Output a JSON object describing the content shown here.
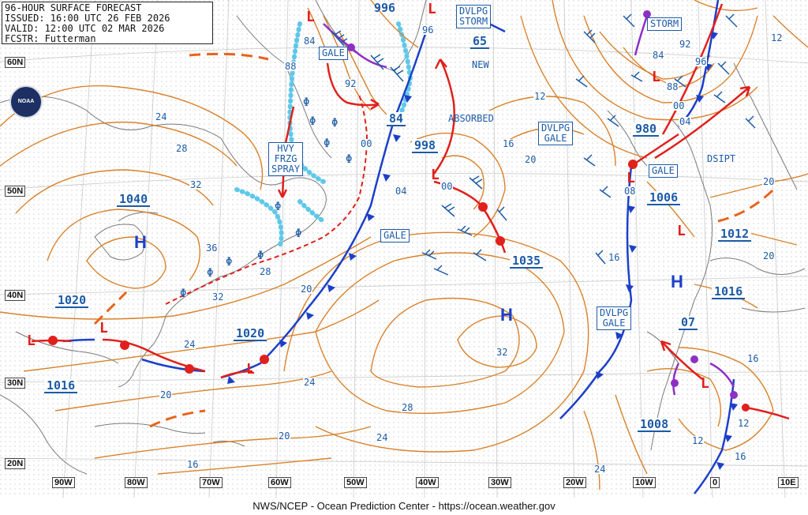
{
  "header": {
    "title": "96-HOUR SURFACE FORECAST",
    "issued": "ISSUED: 16:00 UTC 26 FEB 2026",
    "valid": "VALID:  12:00 UTC 02 MAR 2026",
    "forecaster": "FCSTR:  Futterman"
  },
  "footer": "NWS/NCEP - Ocean Prediction Center - https://ocean.weather.gov",
  "logo_text": "NOAA",
  "latitudes": [
    "60N",
    "50N",
    "40N",
    "30N",
    "20N"
  ],
  "longitudes": [
    "90W",
    "80W",
    "70W",
    "60W",
    "50W",
    "40W",
    "30W",
    "20W",
    "10W",
    "0",
    "10E"
  ],
  "boxed_labels": {
    "gale_1": "GALE",
    "gale_2": "GALE",
    "gale_3": "GALE",
    "dvlpg_storm": "DVLPG\nSTORM",
    "storm": "STORM",
    "dvlpg_gale_1": "DVLPG\nGALE",
    "dvlpg_gale_2": "DVLPG\nGALE",
    "hvy_frzg_spray": "HVY\nFRZG\nSPRAY"
  },
  "plain_labels": {
    "new": "NEW",
    "absorbed": "ABSORBED",
    "dsipt": "DSIPT"
  },
  "pressure_centers": {
    "p1040": "1040",
    "p1020_a": "1020",
    "p1020_b": "1020",
    "p1016_a": "1016",
    "p1035": "1035",
    "p998": "998",
    "p996": "996",
    "p984": "84",
    "p980": "980",
    "p1006": "1006",
    "p1012": "1012",
    "p1016_b": "1016",
    "p1008": "1008",
    "p965": "65",
    "p07": "07"
  },
  "isobar_labels": [
    "24",
    "28",
    "32",
    "36",
    "28",
    "32",
    "20",
    "24",
    "20",
    "16",
    "20",
    "24",
    "28",
    "32",
    "24",
    "20",
    "16",
    "12",
    "16",
    "20",
    "04",
    "00",
    "92",
    "88",
    "84",
    "96",
    "12",
    "16",
    "20",
    "24",
    "16",
    "12",
    "12",
    "92",
    "96",
    "84",
    "88",
    "00",
    "04",
    "08",
    "00"
  ],
  "symbols": {
    "high": "H",
    "low": "L",
    "frzg_spray": "Φ"
  },
  "colors": {
    "isobar": "#d9822b",
    "front_blue": "#1c3fc8",
    "front_red": "#e0201c",
    "occluded": "#8e2fc6",
    "ice": "#5fc8e8",
    "coast": "#7a7a7a",
    "text": "#1c5aa6"
  }
}
